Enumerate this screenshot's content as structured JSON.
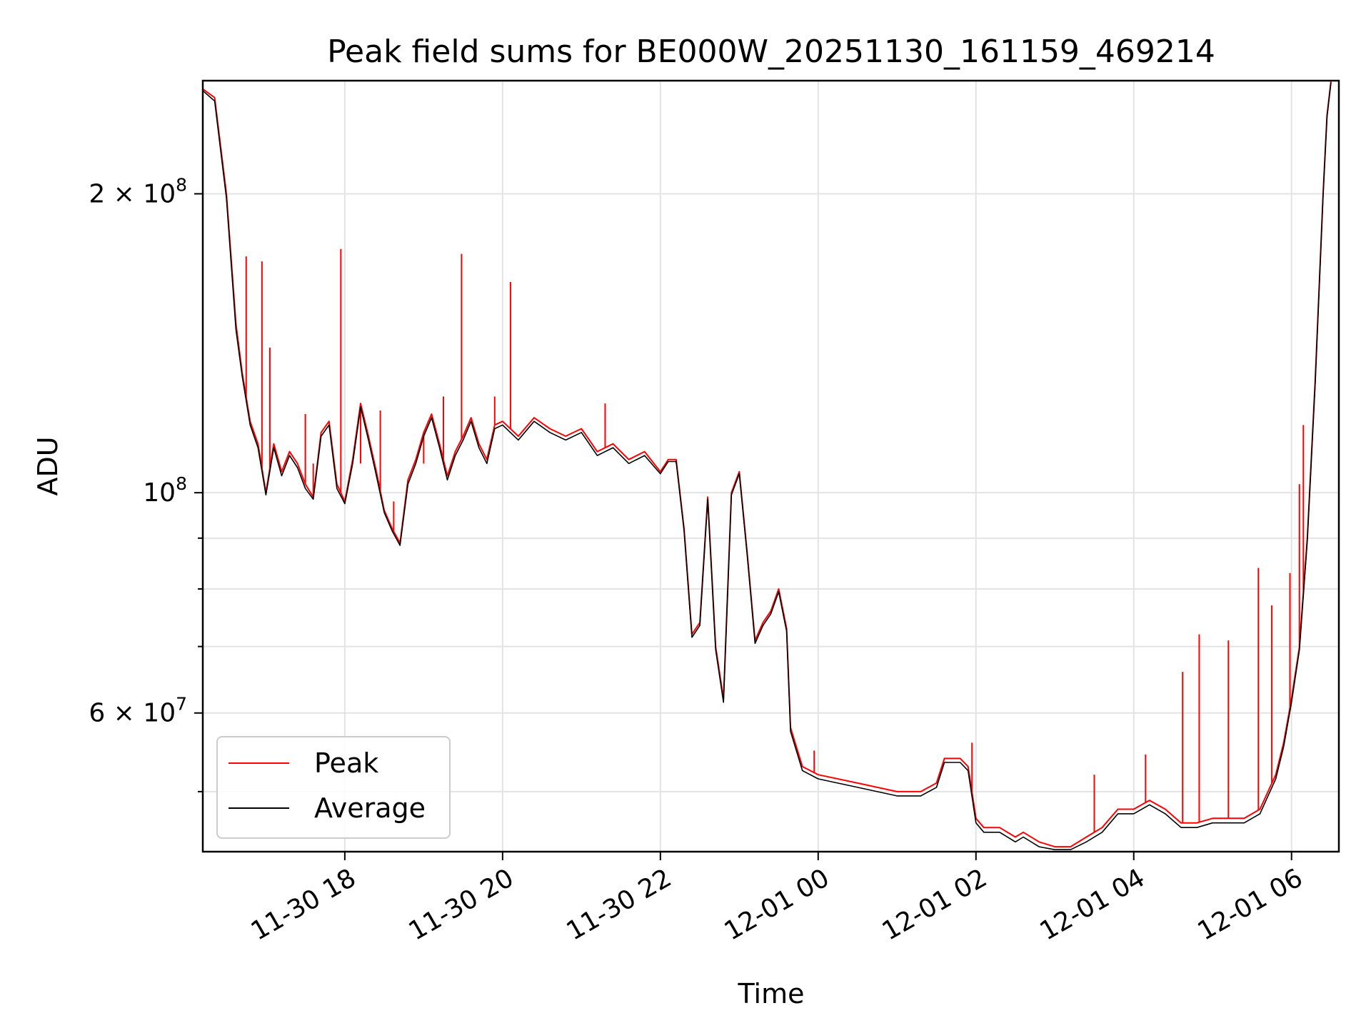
{
  "chart_data": {
    "type": "line",
    "title": "Peak field sums for BE000W_20251130_161159_469214",
    "xlabel": "Time",
    "ylabel": "ADU",
    "yscale": "log",
    "xlim_hours": [
      16.2,
      30.6
    ],
    "ylim": [
      43500000,
      260000000
    ],
    "grid": true,
    "legend_position": "lower-left",
    "x_ticks": [
      {
        "hour": 18,
        "label": "11-30 18"
      },
      {
        "hour": 20,
        "label": "11-30 20"
      },
      {
        "hour": 22,
        "label": "11-30 22"
      },
      {
        "hour": 24,
        "label": "12-01 00"
      },
      {
        "hour": 26,
        "label": "12-01 02"
      },
      {
        "hour": 28,
        "label": "12-01 04"
      },
      {
        "hour": 30,
        "label": "12-01 06"
      }
    ],
    "y_major_ticks": [
      {
        "value": 60000000,
        "mantissa": "6 × 10",
        "exp": "7"
      },
      {
        "value": 100000000,
        "mantissa": "10",
        "exp": "8"
      },
      {
        "value": 200000000,
        "mantissa": "2 × 10",
        "exp": "8"
      }
    ],
    "y_minor_ticks": [
      50000000,
      70000000,
      80000000,
      90000000
    ],
    "series": [
      {
        "name": "Peak",
        "color": "#ff0000",
        "x_hours": [
          16.2,
          16.35,
          16.5,
          16.62,
          16.7,
          16.8,
          16.9,
          17.0,
          17.1,
          17.2,
          17.3,
          17.4,
          17.5,
          17.6,
          17.7,
          17.8,
          17.9,
          18.0,
          18.1,
          18.2,
          18.3,
          18.4,
          18.5,
          18.6,
          18.7,
          18.8,
          18.9,
          19.0,
          19.1,
          19.2,
          19.3,
          19.4,
          19.5,
          19.6,
          19.7,
          19.8,
          19.9,
          20.0,
          20.2,
          20.4,
          20.6,
          20.8,
          21.0,
          21.2,
          21.4,
          21.6,
          21.8,
          22.0,
          22.1,
          22.2,
          22.3,
          22.4,
          22.5,
          22.6,
          22.7,
          22.8,
          22.9,
          23.0,
          23.1,
          23.2,
          23.3,
          23.4,
          23.5,
          23.6,
          23.65,
          23.8,
          24.0,
          24.5,
          25.0,
          25.3,
          25.5,
          25.6,
          25.8,
          25.9,
          26.0,
          26.1,
          26.3,
          26.5,
          26.6,
          26.8,
          27.0,
          27.2,
          27.4,
          27.6,
          27.8,
          28.0,
          28.2,
          28.4,
          28.6,
          28.7,
          28.8,
          29.0,
          29.2,
          29.4,
          29.6,
          29.8,
          29.9,
          30.0,
          30.1,
          30.2,
          30.3,
          30.4,
          30.45,
          30.5
        ],
        "y": [
          255000000,
          250000000,
          200000000,
          148000000,
          132000000,
          118000000,
          112000000,
          100000000,
          112000000,
          105000000,
          110000000,
          107000000,
          102000000,
          99000000,
          115000000,
          118000000,
          102000000,
          98000000,
          108000000,
          123000000,
          114000000,
          105000000,
          96000000,
          92000000,
          89000000,
          103000000,
          108000000,
          115000000,
          120000000,
          112000000,
          104000000,
          110000000,
          114000000,
          119000000,
          112000000,
          108000000,
          117000000,
          118000000,
          114000000,
          119000000,
          116000000,
          114000000,
          116000000,
          110000000,
          112000000,
          108000000,
          110000000,
          105000000,
          108000000,
          108000000,
          92000000,
          72000000,
          74000000,
          99000000,
          70000000,
          62000000,
          100000000,
          105000000,
          87000000,
          71000000,
          74000000,
          76000000,
          80000000,
          73000000,
          58000000,
          53000000,
          52000000,
          51000000,
          50000000,
          50000000,
          51000000,
          54000000,
          54000000,
          53000000,
          47000000,
          46000000,
          46000000,
          45000000,
          45500000,
          44500000,
          44000000,
          44000000,
          45000000,
          46000000,
          48000000,
          48000000,
          49000000,
          48000000,
          46500000,
          46500000,
          46500000,
          47000000,
          47000000,
          47000000,
          48000000,
          52000000,
          56000000,
          62000000,
          70000000,
          90000000,
          130000000,
          200000000,
          240000000,
          260000000
        ],
        "spikes": [
          {
            "hour": 16.75,
            "value": 173000000
          },
          {
            "hour": 16.95,
            "value": 171000000
          },
          {
            "hour": 17.05,
            "value": 140000000
          },
          {
            "hour": 17.5,
            "value": 120000000
          },
          {
            "hour": 17.6,
            "value": 107000000
          },
          {
            "hour": 17.95,
            "value": 176000000
          },
          {
            "hour": 18.2,
            "value": 107000000
          },
          {
            "hour": 18.45,
            "value": 121000000
          },
          {
            "hour": 18.62,
            "value": 98000000
          },
          {
            "hour": 19.0,
            "value": 107000000
          },
          {
            "hour": 19.25,
            "value": 125000000
          },
          {
            "hour": 19.48,
            "value": 174000000
          },
          {
            "hour": 19.9,
            "value": 125000000
          },
          {
            "hour": 20.1,
            "value": 163000000
          },
          {
            "hour": 21.3,
            "value": 123000000
          },
          {
            "hour": 22.2,
            "value": 107000000
          },
          {
            "hour": 23.95,
            "value": 55000000
          },
          {
            "hour": 25.95,
            "value": 56000000
          },
          {
            "hour": 27.5,
            "value": 52000000
          },
          {
            "hour": 28.15,
            "value": 54500000
          },
          {
            "hour": 28.62,
            "value": 66000000
          },
          {
            "hour": 28.83,
            "value": 72000000
          },
          {
            "hour": 29.2,
            "value": 71000000
          },
          {
            "hour": 29.58,
            "value": 84000000
          },
          {
            "hour": 29.75,
            "value": 77000000
          },
          {
            "hour": 29.98,
            "value": 83000000
          },
          {
            "hour": 30.1,
            "value": 102000000
          },
          {
            "hour": 30.15,
            "value": 117000000
          }
        ]
      },
      {
        "name": "Average",
        "color": "#000000",
        "x_hours": [
          16.2,
          16.35,
          16.5,
          16.62,
          16.7,
          16.8,
          16.9,
          17.0,
          17.1,
          17.2,
          17.3,
          17.4,
          17.5,
          17.6,
          17.7,
          17.8,
          17.9,
          18.0,
          18.1,
          18.2,
          18.3,
          18.4,
          18.5,
          18.6,
          18.7,
          18.8,
          18.9,
          19.0,
          19.1,
          19.2,
          19.3,
          19.4,
          19.5,
          19.6,
          19.7,
          19.8,
          19.9,
          20.0,
          20.2,
          20.4,
          20.6,
          20.8,
          21.0,
          21.2,
          21.4,
          21.6,
          21.8,
          22.0,
          22.1,
          22.2,
          22.3,
          22.4,
          22.5,
          22.6,
          22.7,
          22.8,
          22.9,
          23.0,
          23.1,
          23.2,
          23.3,
          23.4,
          23.5,
          23.6,
          23.65,
          23.8,
          24.0,
          24.5,
          25.0,
          25.3,
          25.5,
          25.6,
          25.8,
          25.9,
          26.0,
          26.1,
          26.3,
          26.5,
          26.6,
          26.8,
          27.0,
          27.2,
          27.4,
          27.6,
          27.8,
          28.0,
          28.2,
          28.4,
          28.6,
          28.7,
          28.8,
          29.0,
          29.2,
          29.4,
          29.6,
          29.8,
          29.9,
          30.0,
          30.1,
          30.2,
          30.3,
          30.4,
          30.45,
          30.5
        ],
        "y": [
          254000000,
          248000000,
          198000000,
          146000000,
          131000000,
          117000000,
          111000000,
          99500000,
          111000000,
          104000000,
          109000000,
          106000000,
          101000000,
          98500000,
          114000000,
          117000000,
          101000000,
          97500000,
          107000000,
          122000000,
          113000000,
          104000000,
          95500000,
          91500000,
          88500000,
          102000000,
          107000000,
          114000000,
          119000000,
          111000000,
          103000000,
          109000000,
          113000000,
          118000000,
          111000000,
          107000000,
          116000000,
          117000000,
          113000000,
          118000000,
          115000000,
          113000000,
          115000000,
          109000000,
          111000000,
          107000000,
          109000000,
          104500000,
          107500000,
          107500000,
          91500000,
          71500000,
          73500000,
          98500000,
          69500000,
          61500000,
          99500000,
          104500000,
          86500000,
          70500000,
          73500000,
          75500000,
          79500000,
          72500000,
          57500000,
          52500000,
          51500000,
          50500000,
          49500000,
          49500000,
          50500000,
          53500000,
          53500000,
          52500000,
          46500000,
          45500000,
          45500000,
          44500000,
          45000000,
          44000000,
          43700000,
          43700000,
          44500000,
          45500000,
          47500000,
          47500000,
          48500000,
          47500000,
          46000000,
          46000000,
          46000000,
          46500000,
          46500000,
          46500000,
          47500000,
          51500000,
          55500000,
          61500000,
          69500000,
          89500000,
          129000000,
          199000000,
          239000000,
          259000000
        ]
      }
    ]
  }
}
